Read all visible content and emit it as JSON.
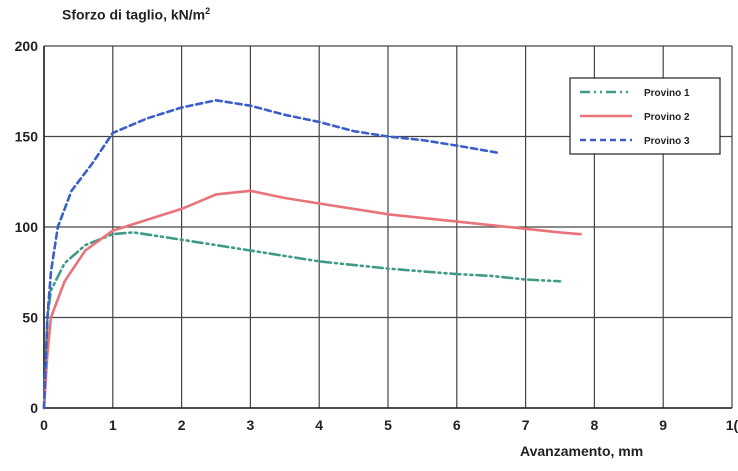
{
  "chart_data": {
    "type": "line",
    "title": "",
    "ylabel": "Sforzo di taglio, kN/m",
    "ylabel_sup": "2",
    "xlabel": "Avanzamento, mm",
    "xlim": [
      0,
      10
    ],
    "ylim": [
      0,
      200
    ],
    "xticks": [
      "0",
      "1",
      "2",
      "3",
      "4",
      "5",
      "6",
      "7",
      "8",
      "9",
      "1("
    ],
    "yticks": [
      "0",
      "50",
      "100",
      "150",
      "200"
    ],
    "grid": true,
    "legend_position": "top-right",
    "series": [
      {
        "name": "Provino 1",
        "color": "#3f9a86",
        "dash": "dash-dot-dot",
        "points": [
          [
            0,
            0
          ],
          [
            0.05,
            50
          ],
          [
            0.1,
            65
          ],
          [
            0.3,
            80
          ],
          [
            0.6,
            90
          ],
          [
            1.0,
            96
          ],
          [
            1.3,
            97
          ],
          [
            2.0,
            93
          ],
          [
            3.0,
            87
          ],
          [
            4.0,
            81
          ],
          [
            5.0,
            77
          ],
          [
            6.0,
            74
          ],
          [
            6.5,
            73
          ],
          [
            7.0,
            71
          ],
          [
            7.5,
            70
          ]
        ]
      },
      {
        "name": "Provino 2",
        "color": "#e8747a",
        "dash": "solid",
        "points": [
          [
            0,
            0
          ],
          [
            0.05,
            30
          ],
          [
            0.1,
            50
          ],
          [
            0.3,
            70
          ],
          [
            0.6,
            87
          ],
          [
            1.0,
            98
          ],
          [
            1.5,
            104
          ],
          [
            2.0,
            110
          ],
          [
            2.5,
            118
          ],
          [
            3.0,
            120
          ],
          [
            3.5,
            116
          ],
          [
            4.0,
            113
          ],
          [
            5.0,
            107
          ],
          [
            6.0,
            103
          ],
          [
            7.0,
            99
          ],
          [
            7.5,
            97
          ],
          [
            7.8,
            96
          ]
        ]
      },
      {
        "name": "Provino 3",
        "color": "#3c5ec8",
        "dash": "dashed",
        "points": [
          [
            0,
            0
          ],
          [
            0.05,
            50
          ],
          [
            0.1,
            75
          ],
          [
            0.2,
            100
          ],
          [
            0.4,
            120
          ],
          [
            0.7,
            135
          ],
          [
            1.0,
            152
          ],
          [
            1.5,
            160
          ],
          [
            2.0,
            166
          ],
          [
            2.5,
            170
          ],
          [
            3.0,
            167
          ],
          [
            3.5,
            162
          ],
          [
            4.0,
            158
          ],
          [
            4.5,
            153
          ],
          [
            5.0,
            150
          ],
          [
            5.5,
            148
          ],
          [
            6.0,
            145
          ],
          [
            6.6,
            141
          ]
        ]
      }
    ]
  }
}
